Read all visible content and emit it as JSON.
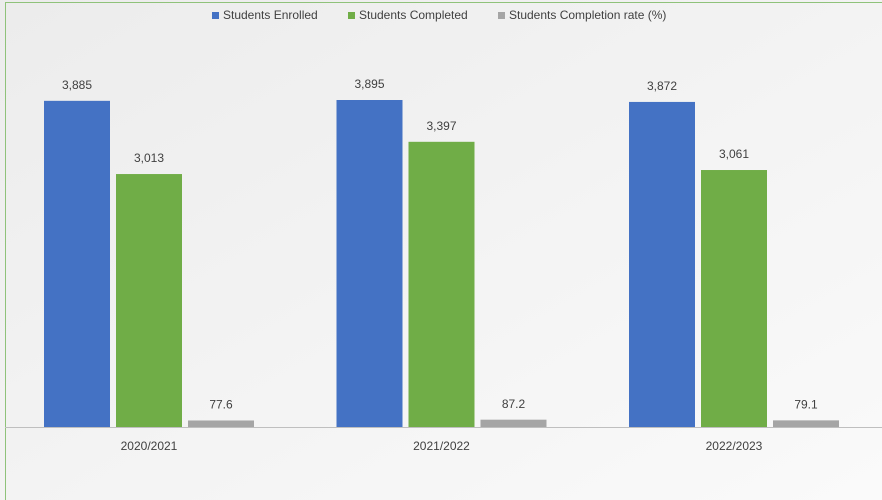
{
  "chart_data": {
    "type": "bar",
    "categories": [
      "2020/2021",
      "2021/2022",
      "2022/2023"
    ],
    "series": [
      {
        "name": "Students Enrolled",
        "color": "#4472c4",
        "values": [
          3885,
          3895,
          3872
        ],
        "value_labels": [
          "3,885",
          "3,895",
          "3,872"
        ]
      },
      {
        "name": "Students Completed",
        "color": "#70ad47",
        "values": [
          3013,
          3397,
          3061
        ],
        "value_labels": [
          "3,013",
          "3,397",
          "3,061"
        ]
      },
      {
        "name": "Students Completion rate (%)",
        "color": "#a5a5a5",
        "values": [
          77.6,
          87.2,
          79.1
        ]
      }
    ],
    "legend": "top"
  }
}
